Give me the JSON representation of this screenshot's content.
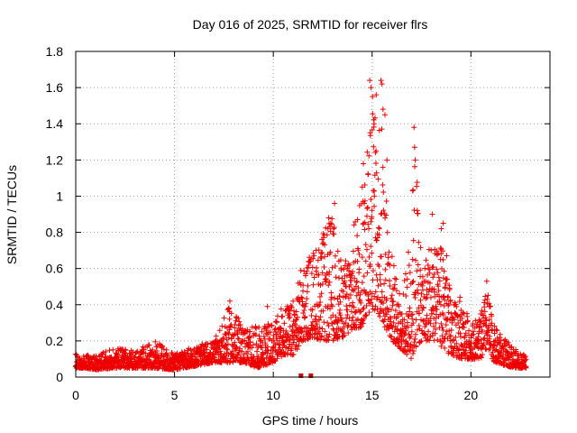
{
  "chart_data": {
    "type": "scatter",
    "title": "Day 016 of 2025, SRMTID for receiver flrs",
    "xlabel": "GPS time / hours",
    "ylabel": "SRMTID / TECUs",
    "xlim": [
      0,
      24
    ],
    "ylim": [
      0,
      1.8
    ],
    "xticks": [
      "0",
      "5",
      "10",
      "15",
      "20"
    ],
    "yticks": [
      "0",
      "0.2",
      "0.4",
      "0.6",
      "0.8",
      "1",
      "1.2",
      "1.4",
      "1.6",
      "1.8"
    ],
    "grid": true,
    "marker": "+",
    "color": "#ee0000",
    "x_range_hours": [
      0,
      22.8
    ],
    "envelope": {
      "hours": [
        0,
        0.5,
        1,
        2,
        3,
        4,
        5,
        6,
        7,
        7.8,
        8.5,
        9.2,
        10,
        10.5,
        11,
        11.5,
        12,
        12.5,
        13,
        13.5,
        14,
        14.5,
        14.8,
        15,
        15.3,
        15.5,
        15.8,
        16,
        16.5,
        17,
        17.2,
        17.5,
        18,
        18.3,
        18.6,
        19,
        19.5,
        20,
        20.5,
        20.8,
        21.2,
        21.8,
        22.4,
        22.8
      ],
      "low": [
        0.05,
        0.05,
        0.04,
        0.05,
        0.05,
        0.05,
        0.04,
        0.06,
        0.08,
        0.08,
        0.08,
        0.05,
        0.08,
        0.12,
        0.12,
        0.2,
        0.22,
        0.2,
        0.2,
        0.22,
        0.25,
        0.28,
        0.35,
        0.38,
        0.35,
        0.3,
        0.25,
        0.2,
        0.15,
        0.1,
        0.15,
        0.2,
        0.2,
        0.2,
        0.15,
        0.12,
        0.1,
        0.1,
        0.1,
        0.15,
        0.08,
        0.06,
        0.05,
        0.05
      ],
      "high": [
        0.13,
        0.12,
        0.12,
        0.16,
        0.15,
        0.2,
        0.13,
        0.17,
        0.2,
        0.4,
        0.28,
        0.28,
        0.3,
        0.4,
        0.4,
        0.65,
        0.7,
        0.8,
        0.9,
        0.6,
        0.8,
        1.1,
        1.6,
        1.5,
        1.62,
        1.4,
        0.9,
        0.7,
        0.4,
        0.9,
        1.35,
        0.6,
        0.8,
        0.7,
        0.9,
        0.4,
        0.45,
        0.3,
        0.35,
        0.5,
        0.28,
        0.2,
        0.14,
        0.12
      ]
    },
    "spikes": [
      {
        "x": 14.88,
        "y": 1.64
      },
      {
        "x": 14.95,
        "y": 1.6
      },
      {
        "x": 15.02,
        "y": 1.55
      },
      {
        "x": 15.45,
        "y": 1.64
      },
      {
        "x": 15.5,
        "y": 1.62
      },
      {
        "x": 15.55,
        "y": 1.48
      },
      {
        "x": 15.65,
        "y": 1.45
      },
      {
        "x": 15.75,
        "y": 1.2
      },
      {
        "x": 14.8,
        "y": 1.12
      },
      {
        "x": 14.9,
        "y": 1.35
      },
      {
        "x": 15.1,
        "y": 1.4
      },
      {
        "x": 15.2,
        "y": 1.25
      },
      {
        "x": 17.12,
        "y": 1.38
      },
      {
        "x": 17.15,
        "y": 1.27
      },
      {
        "x": 17.18,
        "y": 1.2
      },
      {
        "x": 17.05,
        "y": 1.03
      },
      {
        "x": 14.5,
        "y": 1.05
      },
      {
        "x": 14.6,
        "y": 0.96
      },
      {
        "x": 13.1,
        "y": 0.96
      },
      {
        "x": 12.8,
        "y": 0.88
      },
      {
        "x": 18.6,
        "y": 0.85
      },
      {
        "x": 18.5,
        "y": 0.82
      },
      {
        "x": 18.05,
        "y": 0.9
      },
      {
        "x": 20.8,
        "y": 0.53
      },
      {
        "x": 7.8,
        "y": 0.42
      },
      {
        "x": 9.7,
        "y": 0.39
      },
      {
        "x": 11.0,
        "y": 0.42
      }
    ],
    "outliers": [
      {
        "x": 11.4,
        "y": 0.0,
        "marker": "square"
      },
      {
        "x": 11.9,
        "y": 0.0,
        "marker": "square"
      }
    ]
  }
}
